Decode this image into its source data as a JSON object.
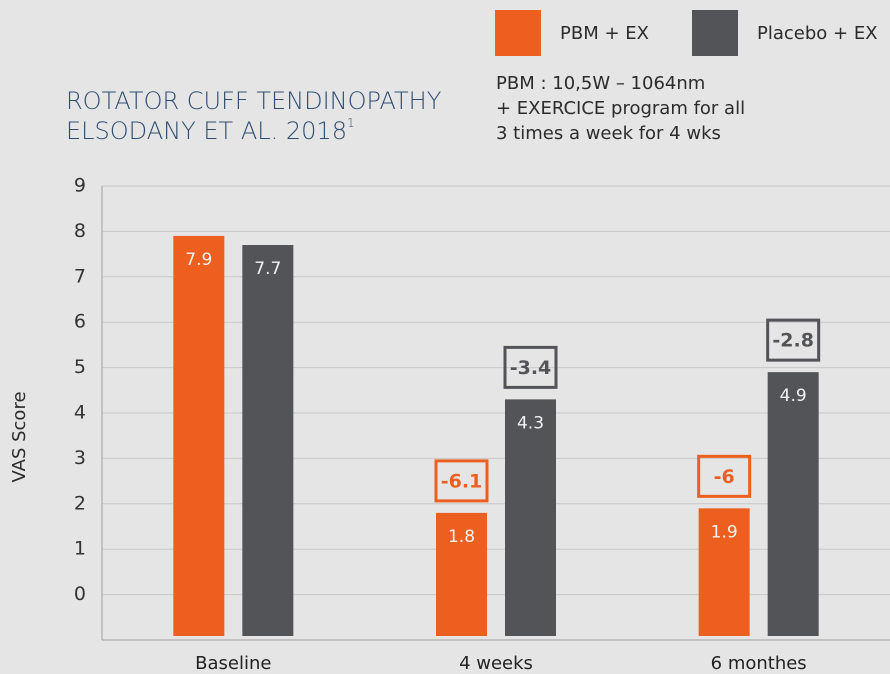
{
  "chart_data": {
    "type": "bar",
    "title": [
      "ROTATOR CUFF TENDINOPATHY",
      "ELSODANY ET AL. 2018"
    ],
    "title_superscript": "1",
    "subtitle": [
      "PBM : 10,5W – 1064nm",
      "+ EXERCICE program for all",
      "3 times a week for 4 wks"
    ],
    "ylabel": "VAS Score",
    "categories": [
      "Baseline",
      "4 weeks",
      "6 monthes"
    ],
    "series": [
      {
        "name": "PBM + EX",
        "color": "#ec5f1f",
        "values": [
          7.9,
          1.8,
          1.9
        ],
        "changes": [
          null,
          -6.1,
          -6
        ]
      },
      {
        "name": "Placebo + EX",
        "color": "#525458",
        "values": [
          7.7,
          4.3,
          4.9
        ],
        "changes": [
          null,
          -3.4,
          -2.8
        ]
      }
    ],
    "ylim": [
      -1,
      9
    ],
    "yticks": [
      0,
      1,
      2,
      3,
      4,
      5,
      6,
      7,
      8,
      9
    ],
    "grid": true,
    "legend": "top-right"
  }
}
